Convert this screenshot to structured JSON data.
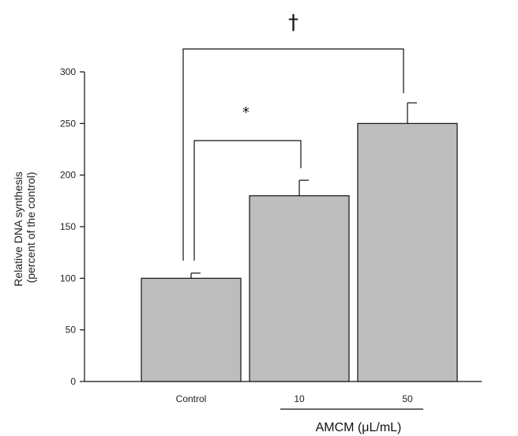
{
  "chart_data": {
    "type": "bar",
    "categories": [
      "Control",
      "10",
      "50"
    ],
    "values": [
      100,
      180,
      250
    ],
    "errors": [
      5,
      15,
      20
    ],
    "ylabel_line1": "Relative DNA synthesis",
    "ylabel_line2": "(percent of the control)",
    "xgroup_label": "AMCM (μL/mL)",
    "ylim": [
      0,
      300
    ],
    "yticks": [
      "0",
      "50",
      "100",
      "150",
      "200",
      "250",
      "300"
    ],
    "bar_color": "#bdbdbd",
    "grid": false,
    "significance": [
      {
        "symbol": "*",
        "from": "Control",
        "to": "10"
      },
      {
        "symbol": "†",
        "from": "Control",
        "to": "50"
      }
    ]
  }
}
